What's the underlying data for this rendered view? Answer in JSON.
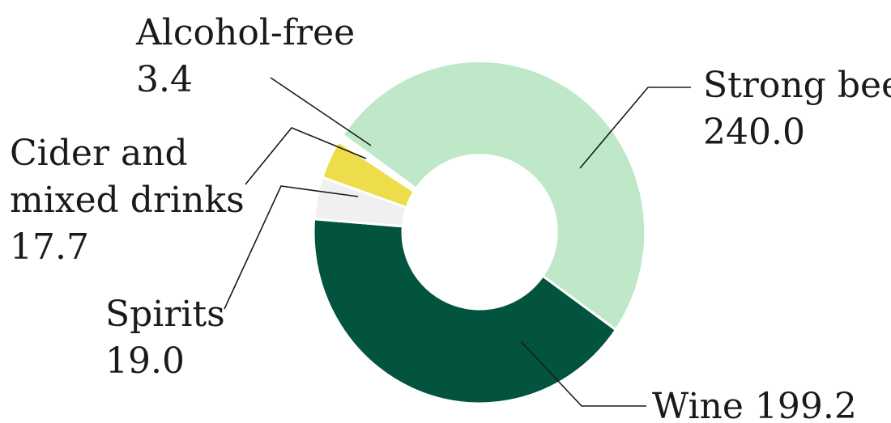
{
  "chart_data": {
    "type": "pie",
    "variant": "donut",
    "title": "",
    "categories": [
      "Strong beer",
      "Wine",
      "Spirits",
      "Cider and mixed drinks",
      "Alcohol-free"
    ],
    "values": [
      240.0,
      199.2,
      19.0,
      17.7,
      3.4
    ],
    "value_labels": [
      "240.0",
      "199.2",
      "19.0",
      "17.7",
      "3.4"
    ],
    "colors": [
      "#bfe8c8",
      "#03543f",
      "#f0f0f0",
      "#eedd4a",
      "#ffffff"
    ],
    "label_lines": [
      [
        "Strong beer",
        "240.0"
      ],
      [
        "Wine 199.2"
      ],
      [
        "Spirits",
        "19.0"
      ],
      [
        "Cider and",
        "mixed drinks",
        "17.7"
      ],
      [
        "Alcohol-free",
        "3.4"
      ]
    ]
  }
}
